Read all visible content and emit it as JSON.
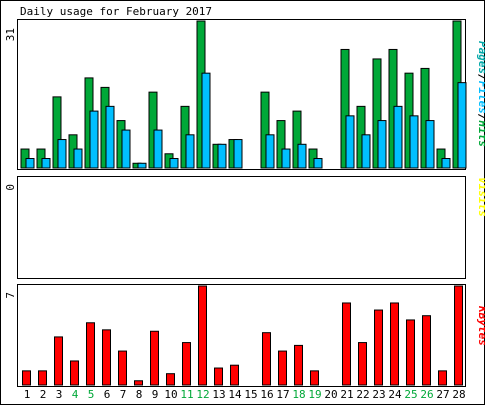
{
  "title": "Daily usage for February 2017",
  "colors": {
    "hits": "#00a838",
    "files": "#00bfff",
    "visits": "#ffff00",
    "kbytes": "#ff0000",
    "pages": "#00a8a8",
    "weekday_label": "#000000",
    "weekend_label": "#00a838"
  },
  "chart_data": [
    {
      "type": "bar",
      "panel": "top",
      "ytick": "31",
      "ylim": [
        0,
        31
      ],
      "legend": [
        {
          "text": "Pages",
          "color": "#00a8a8"
        },
        {
          "text": "/",
          "color": "#000000"
        },
        {
          "text": "Files",
          "color": "#00bfff"
        },
        {
          "text": "/",
          "color": "#000000"
        },
        {
          "text": "Hits",
          "color": "#00a838"
        }
      ],
      "categories": [
        "1",
        "2",
        "3",
        "4",
        "5",
        "6",
        "7",
        "8",
        "9",
        "10",
        "11",
        "12",
        "13",
        "14",
        "15",
        "16",
        "17",
        "18",
        "19",
        "20",
        "21",
        "22",
        "23",
        "24",
        "25",
        "26",
        "27",
        "28"
      ],
      "series": [
        {
          "name": "Hits",
          "values": [
            4,
            4,
            15,
            7,
            19,
            17,
            10,
            1,
            16,
            3,
            13,
            31,
            5,
            6,
            0,
            16,
            10,
            12,
            4,
            0,
            25,
            13,
            23,
            25,
            20,
            21,
            4,
            31
          ]
        },
        {
          "name": "Files",
          "values": [
            2,
            2,
            6,
            4,
            12,
            13,
            8,
            1,
            8,
            2,
            7,
            20,
            5,
            6,
            0,
            7,
            4,
            5,
            2,
            0,
            11,
            7,
            10,
            13,
            11,
            10,
            2,
            18
          ]
        },
        {
          "name": "Pages",
          "values": [
            0,
            0,
            0,
            0,
            0,
            0,
            0,
            0,
            0,
            0,
            0,
            0,
            0,
            0,
            0,
            0,
            0,
            0,
            0,
            0,
            0,
            0,
            0,
            0,
            0,
            0,
            0,
            0
          ]
        }
      ]
    },
    {
      "type": "bar",
      "panel": "middle",
      "ytick": "0",
      "ylim": [
        0,
        1
      ],
      "legend": [
        {
          "text": "Visits",
          "color": "#ffff00"
        }
      ],
      "categories": [
        "1",
        "2",
        "3",
        "4",
        "5",
        "6",
        "7",
        "8",
        "9",
        "10",
        "11",
        "12",
        "13",
        "14",
        "15",
        "16",
        "17",
        "18",
        "19",
        "20",
        "21",
        "22",
        "23",
        "24",
        "25",
        "26",
        "27",
        "28"
      ],
      "series": [
        {
          "name": "Visits",
          "values": [
            0,
            0,
            0,
            0,
            0,
            0,
            0,
            0,
            0,
            0,
            0,
            0,
            0,
            0,
            0,
            0,
            0,
            0,
            0,
            0,
            0,
            0,
            0,
            0,
            0,
            0,
            0,
            0
          ]
        }
      ]
    },
    {
      "type": "bar",
      "panel": "bottom",
      "ytick": "7",
      "ylim": [
        0,
        7
      ],
      "legend": [
        {
          "text": "KBytes",
          "color": "#ff0000"
        }
      ],
      "categories": [
        "1",
        "2",
        "3",
        "4",
        "5",
        "6",
        "7",
        "8",
        "9",
        "10",
        "11",
        "12",
        "13",
        "14",
        "15",
        "16",
        "17",
        "18",
        "19",
        "20",
        "21",
        "22",
        "23",
        "24",
        "25",
        "26",
        "27",
        "28"
      ],
      "series": [
        {
          "name": "KBytes",
          "values": [
            1,
            1,
            3.4,
            1.7,
            4.4,
            3.9,
            2.4,
            0.3,
            3.8,
            0.8,
            3,
            7,
            1.2,
            1.4,
            0,
            3.7,
            2.4,
            2.8,
            1,
            0,
            5.8,
            3,
            5.3,
            5.8,
            4.6,
            4.9,
            1,
            7
          ]
        }
      ]
    }
  ],
  "weekend_days": [
    "4",
    "5",
    "11",
    "12",
    "18",
    "19",
    "25",
    "26"
  ]
}
